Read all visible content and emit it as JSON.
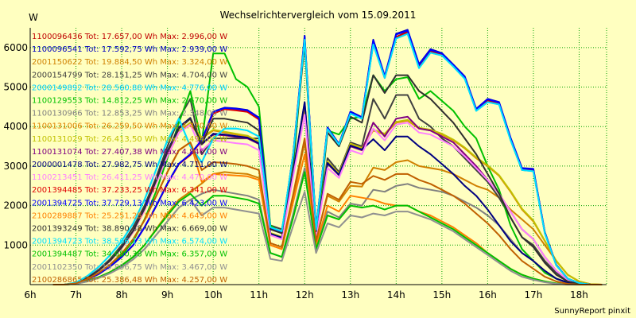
{
  "title": "Wechselrichtervergleich vom 15.09.2011",
  "footer": "SunnyReport pinxit",
  "colors": {
    "background": "#ffffc0",
    "grid": "#00a000",
    "axis": "#000000"
  },
  "chart_data": {
    "type": "line",
    "title": "Wechselrichtervergleich vom 15.09.2011",
    "ylabel": "W",
    "xlabel": "",
    "x_ticks": [
      "6h",
      "7h",
      "8h",
      "9h",
      "10h",
      "11h",
      "12h",
      "13h",
      "14h",
      "15h",
      "16h",
      "17h",
      "18h"
    ],
    "y_ticks": [
      1000,
      2000,
      3000,
      4000,
      5000,
      6000
    ],
    "xlim": [
      6.0,
      18.6
    ],
    "ylim": [
      0,
      6500
    ],
    "grid": true,
    "legend_position": "top-left, inside plot",
    "x": [
      6.5,
      6.75,
      7.0,
      7.25,
      7.5,
      7.75,
      8.0,
      8.25,
      8.5,
      8.75,
      9.0,
      9.25,
      9.5,
      9.75,
      10.0,
      10.25,
      10.5,
      10.75,
      11.0,
      11.25,
      11.5,
      11.75,
      12.0,
      12.25,
      12.5,
      12.75,
      13.0,
      13.25,
      13.5,
      13.75,
      14.0,
      14.25,
      14.5,
      14.75,
      15.0,
      15.25,
      15.5,
      15.75,
      16.0,
      16.25,
      16.5,
      16.75,
      17.0,
      17.25,
      17.5,
      17.75,
      18.0,
      18.25,
      18.5
    ],
    "series": [
      {
        "name": "1100096436 Tot: 17.657,00 Wh Max: 2.996,00 W",
        "color": "#c00000",
        "values": [
          0,
          0,
          30,
          130,
          270,
          460,
          700,
          1000,
          1450,
          1980,
          2550,
          3050,
          3280,
          3650,
          4350,
          4450,
          4430,
          4390,
          4200,
          1440,
          1310,
          3300,
          6230,
          1400,
          3960,
          3550,
          4360,
          4220,
          6130,
          5250,
          6270,
          6400,
          5510,
          5900,
          5830,
          5550,
          5240,
          4430,
          4650,
          4600,
          3690,
          2920,
          2900,
          1320,
          500,
          150,
          40,
          0,
          0
        ]
      },
      {
        "name": "1100096541 Tot: 17.592,75 Wh Max: 2.939,00 W",
        "color": "#0000c0",
        "values": [
          0,
          0,
          30,
          130,
          270,
          460,
          700,
          1000,
          1450,
          1980,
          2560,
          3060,
          3300,
          3660,
          4380,
          4480,
          4460,
          4420,
          4230,
          1450,
          1320,
          3320,
          6300,
          1420,
          3980,
          3560,
          4380,
          4240,
          6200,
          5280,
          6350,
          6450,
          5580,
          5960,
          5860,
          5570,
          5270,
          4450,
          4700,
          4620,
          3720,
          2950,
          2930,
          1330,
          500,
          150,
          40,
          0,
          0
        ]
      },
      {
        "name": "2001150622 Tot: 19.884,50 Wh Max: 3.324,00 W",
        "color": "#d08000",
        "values": [
          0,
          0,
          20,
          90,
          190,
          320,
          490,
          700,
          1000,
          1400,
          1800,
          2150,
          2350,
          2560,
          2800,
          2850,
          2820,
          2800,
          2700,
          1000,
          900,
          2200,
          3600,
          1150,
          2250,
          2100,
          2500,
          2480,
          2960,
          2900,
          3100,
          3150,
          3000,
          2950,
          2900,
          2800,
          2650,
          2500,
          2400,
          2200,
          1900,
          1650,
          1400,
          1000,
          600,
          250,
          80,
          10,
          0
        ]
      },
      {
        "name": "2000154799 Tot: 28.151,25 Wh Max: 4.704,00 W",
        "color": "#404040",
        "values": [
          0,
          0,
          40,
          180,
          380,
          650,
          1000,
          1450,
          2000,
          2700,
          3500,
          4200,
          4700,
          3300,
          3700,
          3700,
          3700,
          3700,
          3700,
          1500,
          1400,
          2800,
          4500,
          1300,
          3200,
          2850,
          3600,
          3500,
          4700,
          4200,
          4800,
          4800,
          4200,
          4000,
          3700,
          3500,
          3200,
          2900,
          2600,
          2200,
          1700,
          1200,
          1000,
          600,
          300,
          100,
          30,
          0,
          0
        ]
      },
      {
        "name": "2000149892 Tot: 28.560,88 Wh Max: 4.776,00 W",
        "color": "#00d0ff",
        "values": [
          0,
          0,
          50,
          220,
          450,
          750,
          1100,
          1550,
          2150,
          2900,
          3650,
          4200,
          3500,
          3100,
          3700,
          3950,
          3950,
          3900,
          3750,
          1450,
          1350,
          3300,
          6200,
          1390,
          3940,
          3540,
          4330,
          4200,
          6080,
          5230,
          6230,
          6350,
          5480,
          5870,
          5800,
          5520,
          5210,
          4400,
          4620,
          4560,
          3660,
          2900,
          2870,
          1300,
          490,
          150,
          40,
          0,
          0
        ]
      },
      {
        "name": "1100129553 Tot: 14.812,25 Wh Max: 2.670,00 W",
        "color": "#00c000",
        "values": [
          0,
          0,
          30,
          140,
          290,
          490,
          750,
          1100,
          1650,
          2350,
          3200,
          4100,
          4900,
          3600,
          5850,
          5850,
          5200,
          5000,
          4500,
          1500,
          1300,
          3000,
          6250,
          1000,
          3900,
          3800,
          4200,
          4250,
          5300,
          4900,
          5200,
          5250,
          4700,
          4900,
          4650,
          4400,
          4000,
          3700,
          3000,
          2400,
          1500,
          900,
          600,
          300,
          150,
          50,
          10,
          0,
          0
        ]
      },
      {
        "name": "1100130966 Tot: 12.853,25 Wh Max: 2.348,00 W",
        "color": "#808080",
        "values": [
          0,
          0,
          20,
          80,
          170,
          290,
          440,
          640,
          900,
          1250,
          1600,
          1950,
          2150,
          2300,
          2400,
          2350,
          2300,
          2250,
          2150,
          800,
          700,
          1800,
          2950,
          950,
          1850,
          1700,
          2050,
          2000,
          2400,
          2350,
          2500,
          2550,
          2450,
          2400,
          2350,
          2250,
          2100,
          1950,
          1750,
          1500,
          1150,
          800,
          600,
          350,
          150,
          50,
          10,
          0,
          0
        ]
      },
      {
        "name": "1100131006 Tot: 26.259,50 Wh Max: 4.470,00 W",
        "color": "#e08000",
        "values": [
          0,
          0,
          40,
          170,
          360,
          600,
          920,
          1330,
          1880,
          2560,
          3250,
          3850,
          4050,
          3700,
          3900,
          3850,
          3800,
          3750,
          3600,
          1300,
          1200,
          2900,
          4400,
          1250,
          3100,
          2800,
          3550,
          3450,
          3900,
          3800,
          4100,
          4150,
          3950,
          3900,
          3800,
          3650,
          3450,
          3200,
          3000,
          2750,
          2350,
          1900,
          1600,
          1100,
          600,
          250,
          80,
          10,
          0
        ]
      },
      {
        "name": "1100131029 Tot: 26.413,50 Wh Max: 4.494,00 W",
        "color": "#c0c000",
        "values": [
          0,
          0,
          40,
          170,
          360,
          600,
          920,
          1330,
          1890,
          2570,
          3270,
          3880,
          4100,
          3720,
          3920,
          3870,
          3820,
          3770,
          3620,
          1310,
          1210,
          2920,
          4430,
          1260,
          3120,
          2810,
          3570,
          3460,
          3920,
          3820,
          4120,
          4170,
          3970,
          3920,
          3820,
          3670,
          3470,
          3220,
          3020,
          2770,
          2370,
          1920,
          1620,
          1110,
          600,
          250,
          80,
          10,
          0
        ]
      },
      {
        "name": "1100131074 Tot: 27.407,38 Wh Max: 4.846,00 W",
        "color": "#800080",
        "values": [
          0,
          0,
          40,
          170,
          360,
          610,
          940,
          1360,
          1920,
          2620,
          3350,
          3950,
          4200,
          3550,
          3800,
          3780,
          3740,
          3700,
          3560,
          1280,
          1180,
          2850,
          4600,
          1230,
          3060,
          2770,
          3500,
          3400,
          4100,
          3750,
          4200,
          4250,
          3950,
          3900,
          3750,
          3600,
          3300,
          3000,
          2650,
          2300,
          1850,
          1400,
          1150,
          700,
          350,
          120,
          30,
          0,
          0
        ]
      },
      {
        "name": "2000001478 Tot: 27.982,75 Wh Max: 4.711,00 W",
        "color": "#000080",
        "values": [
          0,
          0,
          40,
          170,
          360,
          610,
          940,
          1360,
          1930,
          2630,
          3380,
          3980,
          4220,
          3560,
          3820,
          3800,
          3760,
          3720,
          3580,
          1290,
          1190,
          2870,
          4620,
          1240,
          3080,
          2780,
          3520,
          3420,
          3680,
          3400,
          3750,
          3750,
          3500,
          3300,
          3050,
          2800,
          2500,
          2250,
          1900,
          1500,
          1100,
          800,
          600,
          350,
          150,
          50,
          10,
          0,
          0
        ]
      },
      {
        "name": "1100213451 Tot: 26.411,25 Wh Max: 4.470,00 W",
        "color": "#ff80ff",
        "values": [
          0,
          0,
          40,
          170,
          360,
          600,
          920,
          1330,
          1880,
          2560,
          3250,
          3850,
          4050,
          3400,
          3650,
          3620,
          3580,
          3550,
          3400,
          1250,
          1150,
          2750,
          4300,
          1200,
          2950,
          2700,
          3400,
          3300,
          3950,
          3650,
          4050,
          4100,
          3850,
          3800,
          3650,
          3500,
          3250,
          2950,
          2650,
          2300,
          1850,
          1400,
          1150,
          700,
          350,
          120,
          30,
          0,
          0
        ]
      },
      {
        "name": "2001394485 Tot: 37.233,25 Wh Max: 6.341,00 W",
        "color": "#e00000",
        "values": [
          0,
          0,
          30,
          130,
          270,
          460,
          700,
          1000,
          1450,
          1980,
          2550,
          3050,
          3280,
          3650,
          4330,
          4440,
          4410,
          4370,
          4180,
          1430,
          1300,
          3280,
          6200,
          1390,
          3940,
          3540,
          4340,
          4200,
          6100,
          5230,
          6240,
          6370,
          5490,
          5880,
          5810,
          5530,
          5220,
          4410,
          4630,
          4580,
          3670,
          2900,
          2880,
          1310,
          490,
          150,
          40,
          0,
          0
        ]
      },
      {
        "name": "2001394725 Tot: 37.729,13 Wh Max: 6.423,00 W",
        "color": "#0000ff",
        "values": [
          0,
          0,
          30,
          130,
          270,
          460,
          700,
          1000,
          1450,
          1980,
          2560,
          3060,
          3300,
          3660,
          4370,
          4470,
          4450,
          4410,
          4220,
          1440,
          1310,
          3310,
          6280,
          1410,
          3970,
          3550,
          4370,
          4230,
          6180,
          5270,
          6330,
          6430,
          5560,
          5940,
          5850,
          5560,
          5260,
          4440,
          4690,
          4610,
          3710,
          2940,
          2920,
          1320,
          500,
          150,
          40,
          0,
          0
        ]
      },
      {
        "name": "2100289887 Tot: 25.251,25 Wh Max: 4.645,00 W",
        "color": "#ff8000",
        "values": [
          0,
          0,
          30,
          140,
          300,
          510,
          790,
          1150,
          1630,
          2230,
          2850,
          3400,
          3600,
          2600,
          2800,
          2780,
          2760,
          2740,
          2650,
          1000,
          900,
          2100,
          3300,
          1000,
          2000,
          1850,
          2250,
          2200,
          2150,
          2050,
          2000,
          2000,
          1850,
          1750,
          1600,
          1450,
          1250,
          1050,
          800,
          600,
          400,
          250,
          150,
          80,
          30,
          10,
          0,
          0,
          0
        ]
      },
      {
        "name": "2001393249 Tot: 38.890,38 Wh Max: 6.669,00 W",
        "color": "#303030",
        "values": [
          0,
          0,
          40,
          170,
          360,
          610,
          940,
          1360,
          1920,
          2620,
          3350,
          3950,
          4200,
          3550,
          4200,
          4200,
          4150,
          4100,
          3900,
          1400,
          1300,
          3200,
          6100,
          1350,
          3850,
          3500,
          4250,
          4100,
          5300,
          4850,
          5300,
          5300,
          4900,
          4700,
          4400,
          4100,
          3700,
          3300,
          2800,
          2300,
          1700,
          1200,
          950,
          550,
          250,
          80,
          20,
          0,
          0
        ]
      },
      {
        "name": "2001394723 Tot: 38.566,13 Wh Max: 6.574,00 W",
        "color": "#00e0ff",
        "values": [
          0,
          0,
          50,
          220,
          450,
          750,
          1100,
          1550,
          2150,
          2900,
          3650,
          4200,
          3500,
          3100,
          3700,
          3950,
          3950,
          3900,
          3750,
          1450,
          1350,
          3300,
          6200,
          1390,
          3940,
          3540,
          4330,
          4200,
          6080,
          5230,
          6230,
          6350,
          5480,
          5870,
          5800,
          5520,
          5210,
          4400,
          4620,
          4560,
          3660,
          2900,
          2870,
          1300,
          490,
          150,
          40,
          0,
          0
        ]
      },
      {
        "name": "2001394487 Tot: 34.680,38 Wh Max: 6.357,00 W",
        "color": "#00c000",
        "values": [
          0,
          0,
          20,
          90,
          190,
          320,
          490,
          700,
          1000,
          1380,
          1750,
          2100,
          2300,
          2000,
          2250,
          2250,
          2200,
          2150,
          2050,
          800,
          700,
          1700,
          2850,
          900,
          1750,
          1650,
          2000,
          1950,
          2000,
          1900,
          2000,
          2000,
          1850,
          1700,
          1550,
          1400,
          1200,
          1000,
          800,
          600,
          400,
          250,
          150,
          80,
          30,
          10,
          0,
          0,
          0
        ]
      },
      {
        "name": "2001102350 Tot: 19.896,75 Wh Max: 3.467,00 W",
        "color": "#909090",
        "values": [
          0,
          0,
          20,
          80,
          170,
          290,
          440,
          640,
          900,
          1250,
          1600,
          1950,
          2150,
          1750,
          1950,
          1950,
          1900,
          1850,
          1800,
          650,
          600,
          1500,
          2350,
          800,
          1550,
          1450,
          1750,
          1700,
          1800,
          1750,
          1850,
          1850,
          1750,
          1650,
          1500,
          1350,
          1150,
          950,
          750,
          550,
          350,
          200,
          120,
          60,
          20,
          0,
          0,
          0,
          0
        ]
      },
      {
        "name": "2100286865 Tot: 25.386,48 Wh Max: 4.257,00 W",
        "color": "#c06000",
        "values": [
          0,
          0,
          30,
          140,
          300,
          510,
          790,
          1150,
          1630,
          2230,
          2850,
          3400,
          3600,
          2900,
          3100,
          3080,
          3050,
          3000,
          2900,
          1050,
          950,
          2300,
          3700,
          1100,
          2300,
          2150,
          2600,
          2550,
          2750,
          2650,
          2800,
          2800,
          2650,
          2550,
          2400,
          2250,
          2050,
          1800,
          1550,
          1250,
          900,
          600,
          400,
          200,
          80,
          20,
          0,
          0,
          0
        ]
      }
    ]
  }
}
